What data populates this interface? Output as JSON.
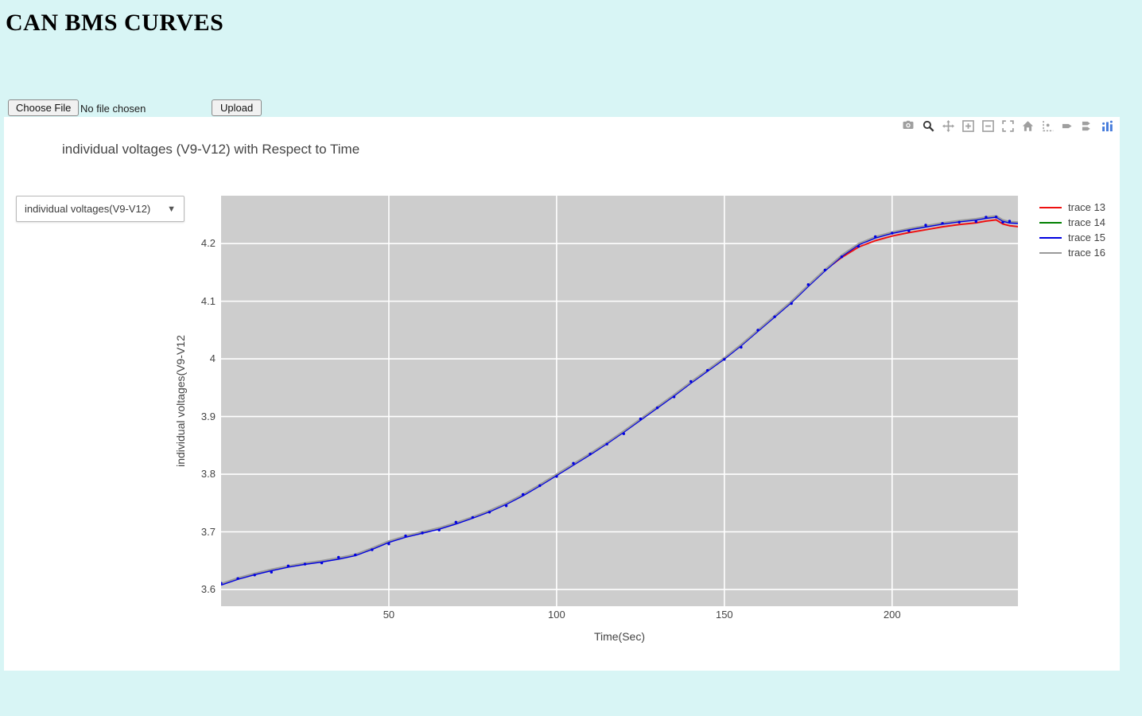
{
  "page": {
    "title": "CAN BMS CURVES",
    "background": "#d8f5f5",
    "panel_background": "#ffffff"
  },
  "upload": {
    "choose_file_label": "Choose File",
    "no_file_text": "No file chosen",
    "upload_label": "Upload"
  },
  "toolbar": {
    "icons": [
      {
        "name": "camera",
        "active": false
      },
      {
        "name": "zoom",
        "active": true
      },
      {
        "name": "pan",
        "active": false
      },
      {
        "name": "zoom-in",
        "active": false
      },
      {
        "name": "zoom-out",
        "active": false
      },
      {
        "name": "autoscale",
        "active": false
      },
      {
        "name": "reset-axes",
        "active": false
      },
      {
        "name": "toggle-spikelines",
        "active": false
      },
      {
        "name": "hover-closest",
        "active": false
      },
      {
        "name": "compare-hover",
        "active": false
      },
      {
        "name": "plotly-logo",
        "active": false
      }
    ],
    "logo_color": "#447adb"
  },
  "chart": {
    "title": "individual voltages (V9-V12) with Respect to Time",
    "dropdown": {
      "selected": "individual voltages(V9-V12)"
    }
  },
  "chart_data": {
    "type": "line",
    "title": "individual voltages (V9-V12) with Respect to Time",
    "xlabel": "Time(Sec)",
    "ylabel": "individual voltages(V9-V12",
    "x_ticks": [
      50,
      100,
      150,
      200
    ],
    "y_ticks": [
      3.6,
      3.7,
      3.8,
      3.9,
      4,
      4.1,
      4.2
    ],
    "xlim": [
      0,
      237.5
    ],
    "ylim": [
      3.571,
      4.283
    ],
    "plot_bg": "#cdcdcd",
    "grid_color": "#ffffff",
    "grid": true,
    "legend_position": "right",
    "x": [
      0,
      5,
      10,
      15,
      20,
      25,
      30,
      35,
      40,
      45,
      50,
      55,
      60,
      65,
      70,
      75,
      80,
      85,
      90,
      95,
      100,
      105,
      110,
      115,
      120,
      125,
      130,
      135,
      140,
      145,
      150,
      155,
      160,
      165,
      170,
      175,
      180,
      185,
      190,
      195,
      200,
      205,
      210,
      215,
      220,
      225,
      228,
      231,
      233,
      235,
      238
    ],
    "series": [
      {
        "name": "trace 13",
        "color": "#ee1111",
        "markers": false,
        "values": [
          3.609,
          3.619,
          3.627,
          3.634,
          3.64,
          3.645,
          3.649,
          3.654,
          3.66,
          3.671,
          3.683,
          3.692,
          3.699,
          3.706,
          3.715,
          3.725,
          3.736,
          3.749,
          3.764,
          3.781,
          3.799,
          3.817,
          3.835,
          3.854,
          3.874,
          3.895,
          3.916,
          3.937,
          3.959,
          3.98,
          4.001,
          4.024,
          4.049,
          4.074,
          4.099,
          4.127,
          4.154,
          4.176,
          4.194,
          4.205,
          4.213,
          4.219,
          4.224,
          4.229,
          4.233,
          4.236,
          4.239,
          4.241,
          4.234,
          4.231,
          4.229
        ]
      },
      {
        "name": "trace 14",
        "color": "#008000",
        "markers": false,
        "values": [
          3.609,
          3.619,
          3.627,
          3.634,
          3.64,
          3.645,
          3.649,
          3.654,
          3.66,
          3.671,
          3.683,
          3.692,
          3.699,
          3.706,
          3.715,
          3.725,
          3.736,
          3.749,
          3.764,
          3.781,
          3.799,
          3.817,
          3.835,
          3.854,
          3.874,
          3.895,
          3.916,
          3.937,
          3.959,
          3.98,
          4.001,
          4.024,
          4.049,
          4.074,
          4.099,
          4.127,
          4.154,
          4.179,
          4.199,
          4.211,
          4.219,
          4.225,
          4.23,
          4.235,
          4.239,
          4.242,
          4.245,
          4.247,
          4.24,
          4.237,
          4.236
        ]
      },
      {
        "name": "trace 15",
        "color": "#0000e0",
        "markers": true,
        "values": [
          3.608,
          3.618,
          3.626,
          3.633,
          3.639,
          3.644,
          3.648,
          3.653,
          3.659,
          3.67,
          3.682,
          3.691,
          3.698,
          3.705,
          3.714,
          3.724,
          3.735,
          3.748,
          3.763,
          3.78,
          3.798,
          3.816,
          3.834,
          3.853,
          3.873,
          3.894,
          3.915,
          3.936,
          3.958,
          3.979,
          4.0,
          4.023,
          4.048,
          4.073,
          4.098,
          4.126,
          4.153,
          4.178,
          4.198,
          4.21,
          4.218,
          4.224,
          4.229,
          4.234,
          4.238,
          4.241,
          4.244,
          4.246,
          4.239,
          4.236,
          4.235
        ]
      },
      {
        "name": "trace 16",
        "color": "#9a9a9a",
        "markers": false,
        "values": [
          3.61,
          3.62,
          3.628,
          3.635,
          3.641,
          3.646,
          3.65,
          3.655,
          3.661,
          3.672,
          3.684,
          3.693,
          3.7,
          3.707,
          3.716,
          3.726,
          3.737,
          3.75,
          3.765,
          3.782,
          3.8,
          3.818,
          3.836,
          3.855,
          3.875,
          3.896,
          3.917,
          3.938,
          3.96,
          3.981,
          4.002,
          4.025,
          4.05,
          4.075,
          4.1,
          4.128,
          4.155,
          4.18,
          4.2,
          4.212,
          4.22,
          4.226,
          4.231,
          4.236,
          4.24,
          4.243,
          4.246,
          4.248,
          4.241,
          4.238,
          4.237
        ]
      }
    ]
  }
}
